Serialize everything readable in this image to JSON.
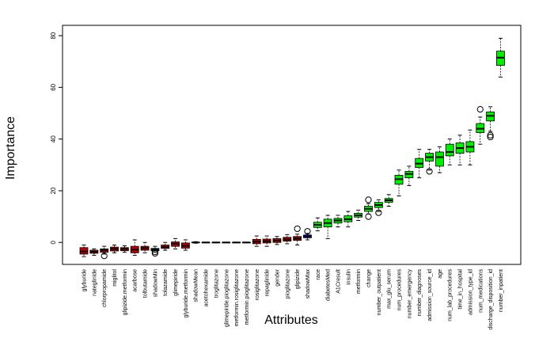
{
  "chart_data": {
    "type": "boxplot",
    "xlabel": "Attributes",
    "ylabel": "Importance",
    "ylim": [
      -8.5,
      84
    ],
    "yticks": [
      0,
      20,
      40,
      60,
      80
    ],
    "colors": {
      "rejected": "#c00000",
      "shadow": "#0000ff",
      "tentative": "#ffff00",
      "confirmed": "#00ee00",
      "outline": "#000000"
    },
    "categories": [
      "glyburide",
      "nateglinide",
      "chlorpropamide",
      "miglitol",
      "glipizide.metformin",
      "acarbose",
      "tolbutamide",
      "shadowMin",
      "tolazamide",
      "glimepiride",
      "glyburide.metformin",
      "shadowMean",
      "acetohexamide",
      "troglitazone",
      "glimepiride.pioglitazone",
      "metformin.rosiglitazone",
      "metformin.pioglitazone",
      "rosiglitazone",
      "repaglinide",
      "gender",
      "pioglitazone",
      "glipizide",
      "shadowMax",
      "race",
      "diabetesMed",
      "A1Cresult",
      "insulin",
      "metformin",
      "change",
      "number_outpatient",
      "max_glu_serum",
      "num_procedures",
      "number_emergency",
      "number_diagnoses",
      "admission_source_id",
      "age",
      "num_lab_procedures",
      "time_in_hospital",
      "admission_type_id",
      "num_medications",
      "discharge_disposition_id",
      "number_inpatient"
    ],
    "boxes": [
      {
        "status": "rejected",
        "min": -5.5,
        "q1": -4.5,
        "median": -3.5,
        "q3": -2.0,
        "max": -1.0,
        "outliers": []
      },
      {
        "status": "rejected",
        "min": -5.0,
        "q1": -4.2,
        "median": -3.6,
        "q3": -3.0,
        "max": -2.5,
        "outliers": []
      },
      {
        "status": "rejected",
        "min": -4.5,
        "q1": -3.8,
        "median": -3.0,
        "q3": -2.5,
        "max": -1.5,
        "outliers": [
          -5.2
        ]
      },
      {
        "status": "rejected",
        "min": -4.0,
        "q1": -3.3,
        "median": -2.5,
        "q3": -1.8,
        "max": -1.0,
        "outliers": []
      },
      {
        "status": "rejected",
        "min": -3.8,
        "q1": -3.2,
        "median": -2.5,
        "q3": -2.0,
        "max": -1.3,
        "outliers": []
      },
      {
        "status": "rejected",
        "min": -5.0,
        "q1": -4.0,
        "median": -2.8,
        "q3": -1.5,
        "max": 1.0,
        "outliers": []
      },
      {
        "status": "rejected",
        "min": -4.0,
        "q1": -3.0,
        "median": -2.2,
        "q3": -1.5,
        "max": 0.0,
        "outliers": []
      },
      {
        "status": "shadow",
        "min": -3.8,
        "q1": -3.2,
        "median": -2.8,
        "q3": -2.3,
        "max": -1.5,
        "outliers": [
          -4.2,
          -3.6
        ]
      },
      {
        "status": "rejected",
        "min": -3.0,
        "q1": -2.3,
        "median": -1.8,
        "q3": -1.0,
        "max": 0.0,
        "outliers": []
      },
      {
        "status": "rejected",
        "min": -2.5,
        "q1": -1.5,
        "median": -0.5,
        "q3": 0.2,
        "max": 1.5,
        "outliers": []
      },
      {
        "status": "rejected",
        "min": -3.0,
        "q1": -2.2,
        "median": -1.3,
        "q3": -0.2,
        "max": 1.0,
        "outliers": []
      },
      {
        "status": "shadow",
        "min": -0.3,
        "q1": -0.1,
        "median": 0.0,
        "q3": 0.1,
        "max": 0.3,
        "outliers": []
      },
      {
        "status": "rejected",
        "min": 0.0,
        "q1": 0.0,
        "median": 0.0,
        "q3": 0.0,
        "max": 0.0,
        "outliers": []
      },
      {
        "status": "rejected",
        "min": 0.0,
        "q1": 0.0,
        "median": 0.0,
        "q3": 0.0,
        "max": 0.0,
        "outliers": []
      },
      {
        "status": "rejected",
        "min": 0.0,
        "q1": 0.0,
        "median": 0.0,
        "q3": 0.0,
        "max": 0.0,
        "outliers": []
      },
      {
        "status": "rejected",
        "min": 0.0,
        "q1": 0.0,
        "median": 0.0,
        "q3": 0.0,
        "max": 0.0,
        "outliers": []
      },
      {
        "status": "rejected",
        "min": 0.0,
        "q1": 0.0,
        "median": 0.0,
        "q3": 0.0,
        "max": 0.0,
        "outliers": []
      },
      {
        "status": "rejected",
        "min": -1.5,
        "q1": -0.5,
        "median": 0.3,
        "q3": 1.2,
        "max": 2.5,
        "outliers": []
      },
      {
        "status": "rejected",
        "min": -1.5,
        "q1": -0.2,
        "median": 0.5,
        "q3": 1.3,
        "max": 2.5,
        "outliers": []
      },
      {
        "status": "rejected",
        "min": -0.8,
        "q1": 0.0,
        "median": 0.7,
        "q3": 1.5,
        "max": 2.3,
        "outliers": []
      },
      {
        "status": "rejected",
        "min": -0.5,
        "q1": 0.5,
        "median": 1.2,
        "q3": 2.0,
        "max": 3.0,
        "outliers": []
      },
      {
        "status": "rejected",
        "min": -1.0,
        "q1": 0.8,
        "median": 1.5,
        "q3": 2.3,
        "max": 3.2,
        "outliers": [
          5.3
        ]
      },
      {
        "status": "shadow",
        "min": 1.0,
        "q1": 1.8,
        "median": 2.4,
        "q3": 2.9,
        "max": 3.5,
        "outliers": [
          4.3
        ]
      },
      {
        "status": "confirmed",
        "min": 4.5,
        "q1": 5.8,
        "median": 6.8,
        "q3": 7.8,
        "max": 9.5,
        "outliers": []
      },
      {
        "status": "confirmed",
        "min": 1.5,
        "q1": 6.0,
        "median": 7.5,
        "q3": 9.0,
        "max": 10.5,
        "outliers": []
      },
      {
        "status": "confirmed",
        "min": 6.0,
        "q1": 7.5,
        "median": 8.5,
        "q3": 9.3,
        "max": 10.5,
        "outliers": []
      },
      {
        "status": "confirmed",
        "min": 6.0,
        "q1": 8.0,
        "median": 9.0,
        "q3": 10.3,
        "max": 12.0,
        "outliers": []
      },
      {
        "status": "confirmed",
        "min": 8.5,
        "q1": 9.8,
        "median": 10.5,
        "q3": 11.3,
        "max": 12.5,
        "outliers": []
      },
      {
        "status": "confirmed",
        "min": 11.0,
        "q1": 12.0,
        "median": 13.0,
        "q3": 14.0,
        "max": 15.0,
        "outliers": [
          16.5,
          10.0
        ]
      },
      {
        "status": "confirmed",
        "min": 12.0,
        "q1": 13.5,
        "median": 14.5,
        "q3": 15.5,
        "max": 16.5,
        "outliers": [
          11.5
        ]
      },
      {
        "status": "confirmed",
        "min": 14.0,
        "q1": 15.5,
        "median": 16.3,
        "q3": 17.0,
        "max": 18.5,
        "outliers": []
      },
      {
        "status": "confirmed",
        "min": 18.0,
        "q1": 22.5,
        "median": 24.5,
        "q3": 26.0,
        "max": 28.0,
        "outliers": []
      },
      {
        "status": "confirmed",
        "min": 22.0,
        "q1": 25.0,
        "median": 26.5,
        "q3": 27.5,
        "max": 29.5,
        "outliers": []
      },
      {
        "status": "confirmed",
        "min": 25.0,
        "q1": 29.0,
        "median": 30.5,
        "q3": 32.5,
        "max": 36.0,
        "outliers": []
      },
      {
        "status": "confirmed",
        "min": 28.0,
        "q1": 31.5,
        "median": 33.0,
        "q3": 34.5,
        "max": 36.0,
        "outliers": [
          27.5
        ]
      },
      {
        "status": "confirmed",
        "min": 27.0,
        "q1": 29.5,
        "median": 33.0,
        "q3": 35.0,
        "max": 37.0,
        "outliers": []
      },
      {
        "status": "confirmed",
        "min": 30.0,
        "q1": 33.5,
        "median": 35.0,
        "q3": 38.0,
        "max": 40.0,
        "outliers": []
      },
      {
        "status": "confirmed",
        "min": 30.0,
        "q1": 34.5,
        "median": 36.5,
        "q3": 38.5,
        "max": 41.5,
        "outliers": []
      },
      {
        "status": "confirmed",
        "min": 30.0,
        "q1": 35.0,
        "median": 37.0,
        "q3": 39.0,
        "max": 43.5,
        "outliers": []
      },
      {
        "status": "confirmed",
        "min": 38.0,
        "q1": 42.5,
        "median": 44.0,
        "q3": 46.0,
        "max": 48.5,
        "outliers": [
          51.5
        ]
      },
      {
        "status": "confirmed",
        "min": 43.0,
        "q1": 47.0,
        "median": 49.0,
        "q3": 50.5,
        "max": 52.5,
        "outliers": [
          41.5,
          40.8
        ]
      },
      {
        "status": "confirmed",
        "min": 64.0,
        "q1": 68.5,
        "median": 71.5,
        "q3": 74.0,
        "max": 79.0,
        "outliers": []
      }
    ]
  }
}
